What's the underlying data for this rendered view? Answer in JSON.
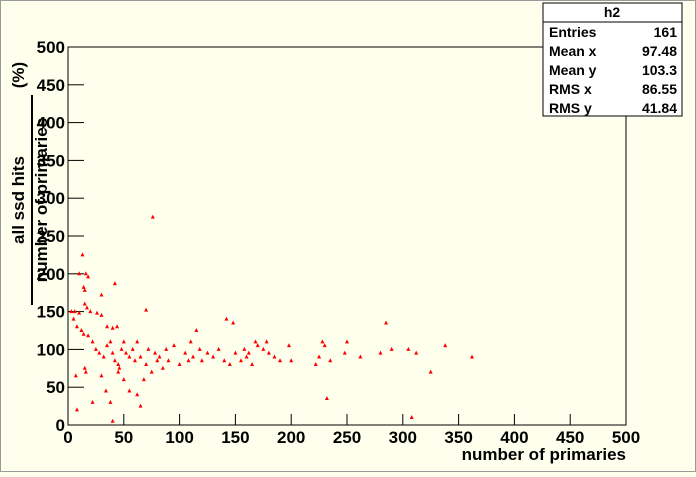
{
  "chart_data": {
    "type": "scatter",
    "x_label": "number of primaries",
    "y_label_numerator": "all ssd hits",
    "y_label_denominator": "number of primaries",
    "y_label_unit": "(%)",
    "color": "#ff0000",
    "xlim": [
      0,
      500
    ],
    "ylim": [
      0,
      500
    ],
    "xticks": [
      0,
      50,
      100,
      150,
      200,
      250,
      300,
      350,
      400,
      450,
      500
    ],
    "yticks": [
      0,
      50,
      100,
      150,
      200,
      250,
      300,
      350,
      400,
      450,
      500
    ],
    "x": [
      76,
      13,
      10,
      16,
      14,
      15,
      18,
      42,
      30,
      3,
      6,
      10,
      15,
      17,
      20,
      26,
      30,
      35,
      40,
      44,
      70,
      5,
      8,
      12,
      14,
      18,
      22,
      25,
      28,
      32,
      35,
      38,
      40,
      42,
      45,
      46,
      48,
      50,
      52,
      55,
      58,
      60,
      62,
      65,
      68,
      70,
      72,
      75,
      78,
      80,
      82,
      85,
      88,
      90,
      95,
      100,
      105,
      108,
      110,
      112,
      115,
      118,
      120,
      125,
      130,
      135,
      140,
      142,
      145,
      148,
      150,
      155,
      158,
      160,
      162,
      165,
      168,
      170,
      175,
      178,
      180,
      185,
      190,
      198,
      200,
      222,
      225,
      228,
      230,
      232,
      235,
      248,
      250,
      262,
      280,
      285,
      290,
      305,
      308,
      312,
      325,
      338,
      362,
      8,
      7,
      15,
      16,
      22,
      30,
      34,
      38,
      40,
      45,
      50,
      55,
      62,
      65
    ],
    "values": [
      275,
      225,
      200,
      200,
      182,
      178,
      196,
      187,
      172,
      150,
      150,
      148,
      160,
      155,
      150,
      148,
      145,
      130,
      128,
      130,
      152,
      140,
      130,
      125,
      120,
      118,
      110,
      100,
      95,
      90,
      105,
      110,
      95,
      85,
      80,
      75,
      100,
      110,
      95,
      90,
      100,
      85,
      110,
      90,
      60,
      80,
      100,
      70,
      95,
      85,
      90,
      75,
      100,
      85,
      105,
      80,
      95,
      85,
      110,
      90,
      125,
      100,
      85,
      95,
      90,
      100,
      85,
      140,
      80,
      135,
      95,
      85,
      100,
      90,
      95,
      80,
      110,
      105,
      100,
      110,
      95,
      90,
      85,
      105,
      85,
      80,
      90,
      110,
      105,
      35,
      85,
      95,
      110,
      90,
      95,
      135,
      100,
      100,
      10,
      95,
      70,
      105,
      90,
      20,
      65,
      75,
      70,
      30,
      65,
      45,
      30,
      5,
      70,
      60,
      45,
      40,
      25
    ],
    "stats": {
      "title": "h2",
      "rows": [
        {
          "label": "Entries",
          "value": 161
        },
        {
          "label": "Mean x",
          "value": 97.48
        },
        {
          "label": "Mean y",
          "value": 103.3
        },
        {
          "label": "RMS x",
          "value": 86.55
        },
        {
          "label": "RMS y",
          "value": 41.84
        }
      ]
    }
  }
}
